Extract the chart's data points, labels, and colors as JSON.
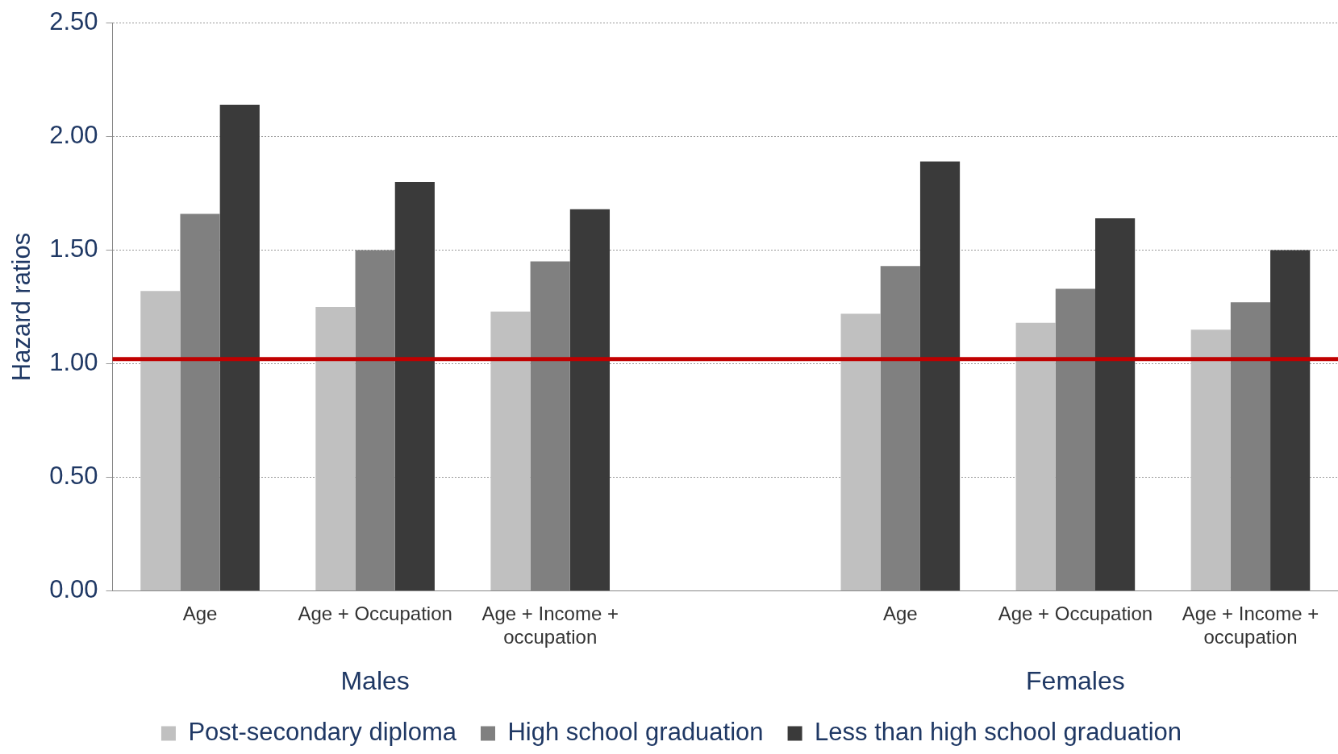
{
  "chart_data": {
    "type": "bar",
    "ylabel": "Hazard ratios",
    "categories": [
      "Age",
      "Age + Occupation",
      "Age + Income + occupation",
      null,
      "Age",
      "Age + Occupation",
      "Age + Income + occupation"
    ],
    "series": [
      {
        "name": "Post-secondary diploma",
        "color": "#c0c0c0",
        "values": [
          1.32,
          1.25,
          1.23,
          null,
          1.22,
          1.18,
          1.15
        ]
      },
      {
        "name": "High school graduation",
        "color": "#808080",
        "values": [
          1.66,
          1.5,
          1.45,
          null,
          1.43,
          1.33,
          1.27
        ]
      },
      {
        "name": "Less than high school graduation",
        "color": "#3a3a3a",
        "values": [
          2.14,
          1.8,
          1.68,
          null,
          1.89,
          1.64,
          1.5
        ]
      }
    ],
    "ylim": [
      0,
      2.5
    ],
    "yticks": [
      {
        "value": 0,
        "label": "0.00"
      },
      {
        "value": 0.5,
        "label": "0.50"
      },
      {
        "value": 1,
        "label": "1.00"
      },
      {
        "value": 1.5,
        "label": "1.50"
      },
      {
        "value": 2,
        "label": "2.00"
      },
      {
        "value": 2.5,
        "label": "2.50"
      }
    ],
    "grid": "y",
    "legend": "bottom",
    "ref_lines": [
      {
        "axis": "y",
        "value": 1.02,
        "color": "#c00000"
      }
    ],
    "annotations": [
      "Males",
      "Females"
    ]
  }
}
